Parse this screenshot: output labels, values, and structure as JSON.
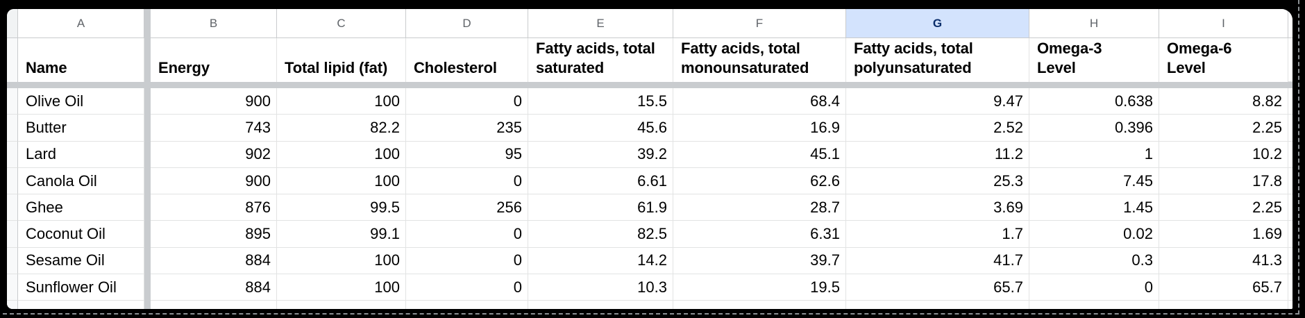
{
  "columns": {
    "letters": [
      "A",
      "B",
      "C",
      "D",
      "E",
      "F",
      "G",
      "H",
      "I"
    ],
    "selected_letter": "G"
  },
  "table": {
    "headers": {
      "name": "Name",
      "energy": "Energy",
      "total_lipid": "Total lipid (fat)",
      "cholesterol": "Cholesterol",
      "saturated": "Fatty acids, total\nsaturated",
      "monounsaturated": "Fatty acids, total\nmonounsaturated",
      "polyunsaturated": "Fatty acids, total\npolyunsaturated",
      "omega3": "Omega-3\nLevel",
      "omega6": "Omega-6\nLevel"
    },
    "rows": [
      {
        "name": "Olive Oil",
        "values": [
          "900",
          "100",
          "0",
          "15.5",
          "68.4",
          "9.47",
          "0.638",
          "8.82"
        ]
      },
      {
        "name": "Butter",
        "values": [
          "743",
          "82.2",
          "235",
          "45.6",
          "16.9",
          "2.52",
          "0.396",
          "2.25"
        ]
      },
      {
        "name": "Lard",
        "values": [
          "902",
          "100",
          "95",
          "39.2",
          "45.1",
          "11.2",
          "1",
          "10.2"
        ]
      },
      {
        "name": "Canola Oil",
        "values": [
          "900",
          "100",
          "0",
          "6.61",
          "62.6",
          "25.3",
          "7.45",
          "17.8"
        ]
      },
      {
        "name": "Ghee",
        "values": [
          "876",
          "99.5",
          "256",
          "61.9",
          "28.7",
          "3.69",
          "1.45",
          "2.25"
        ]
      },
      {
        "name": "Coconut Oil",
        "values": [
          "895",
          "99.1",
          "0",
          "82.5",
          "6.31",
          "1.7",
          "0.02",
          "1.69"
        ]
      },
      {
        "name": "Sesame Oil",
        "values": [
          "884",
          "100",
          "0",
          "14.2",
          "39.7",
          "41.7",
          "0.3",
          "41.3"
        ]
      },
      {
        "name": "Sunflower Oil",
        "values": [
          "884",
          "100",
          "0",
          "10.3",
          "19.5",
          "65.7",
          "0",
          "65.7"
        ]
      }
    ]
  },
  "colors": {
    "selected_header_bg": "#d3e3fd",
    "selected_header_text": "#0b2e6b",
    "grid_line": "#e2e3e3",
    "header_grid_line": "#c9cbcd",
    "frozen_divider": "#c9cccf",
    "column_letter_text": "#5f6368",
    "frame_background": "#000000"
  }
}
